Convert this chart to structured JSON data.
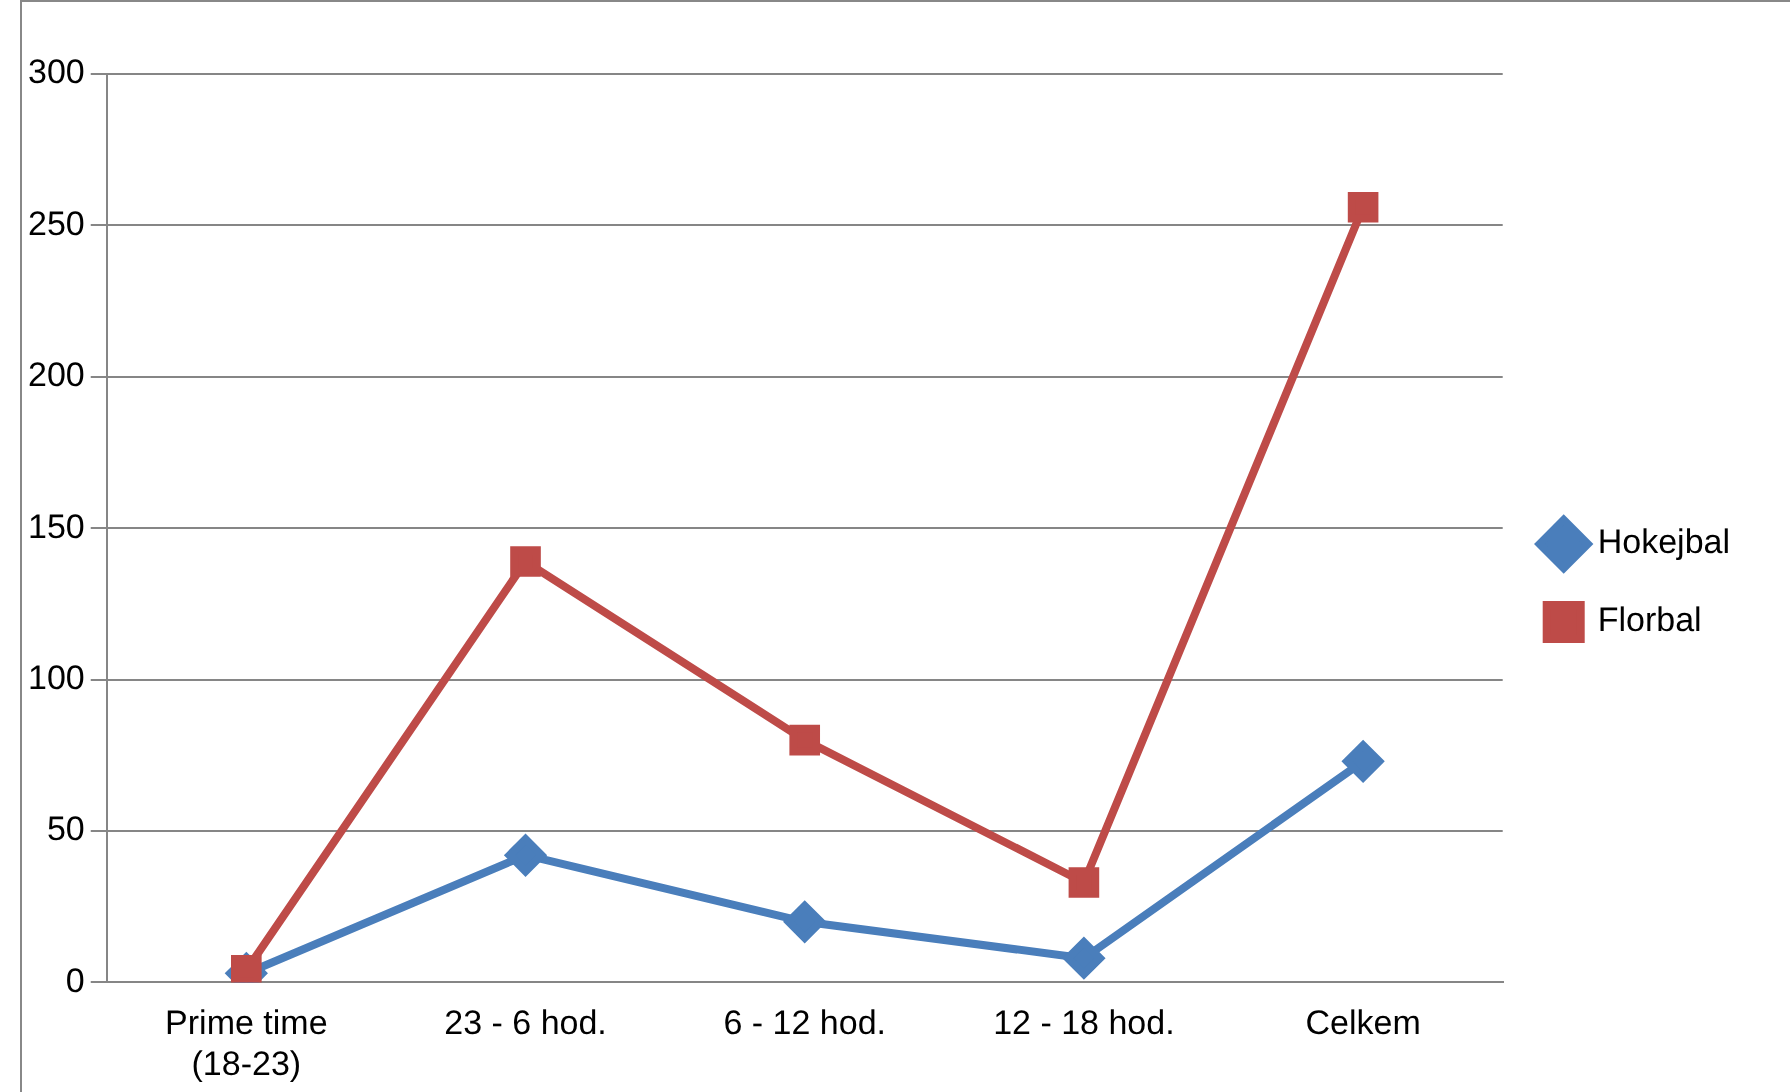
{
  "chart_data": {
    "type": "line",
    "categories": [
      "Prime time (18-23)",
      "23 - 6 hod.",
      "6 - 12 hod.",
      "12 - 18 hod.",
      "Celkem"
    ],
    "series": [
      {
        "name": "Hokejbal",
        "color": "#4a7ebb",
        "marker": "diamond",
        "values": [
          3,
          42,
          20,
          8,
          73
        ]
      },
      {
        "name": "Florbal",
        "color": "#be4b48",
        "marker": "square",
        "values": [
          4,
          139,
          80,
          33,
          256
        ]
      }
    ],
    "ylim": [
      0,
      300
    ],
    "yticks": [
      0,
      50,
      100,
      150,
      200,
      250,
      300
    ],
    "grid": "y",
    "legend": "right",
    "line_style": "solid"
  }
}
